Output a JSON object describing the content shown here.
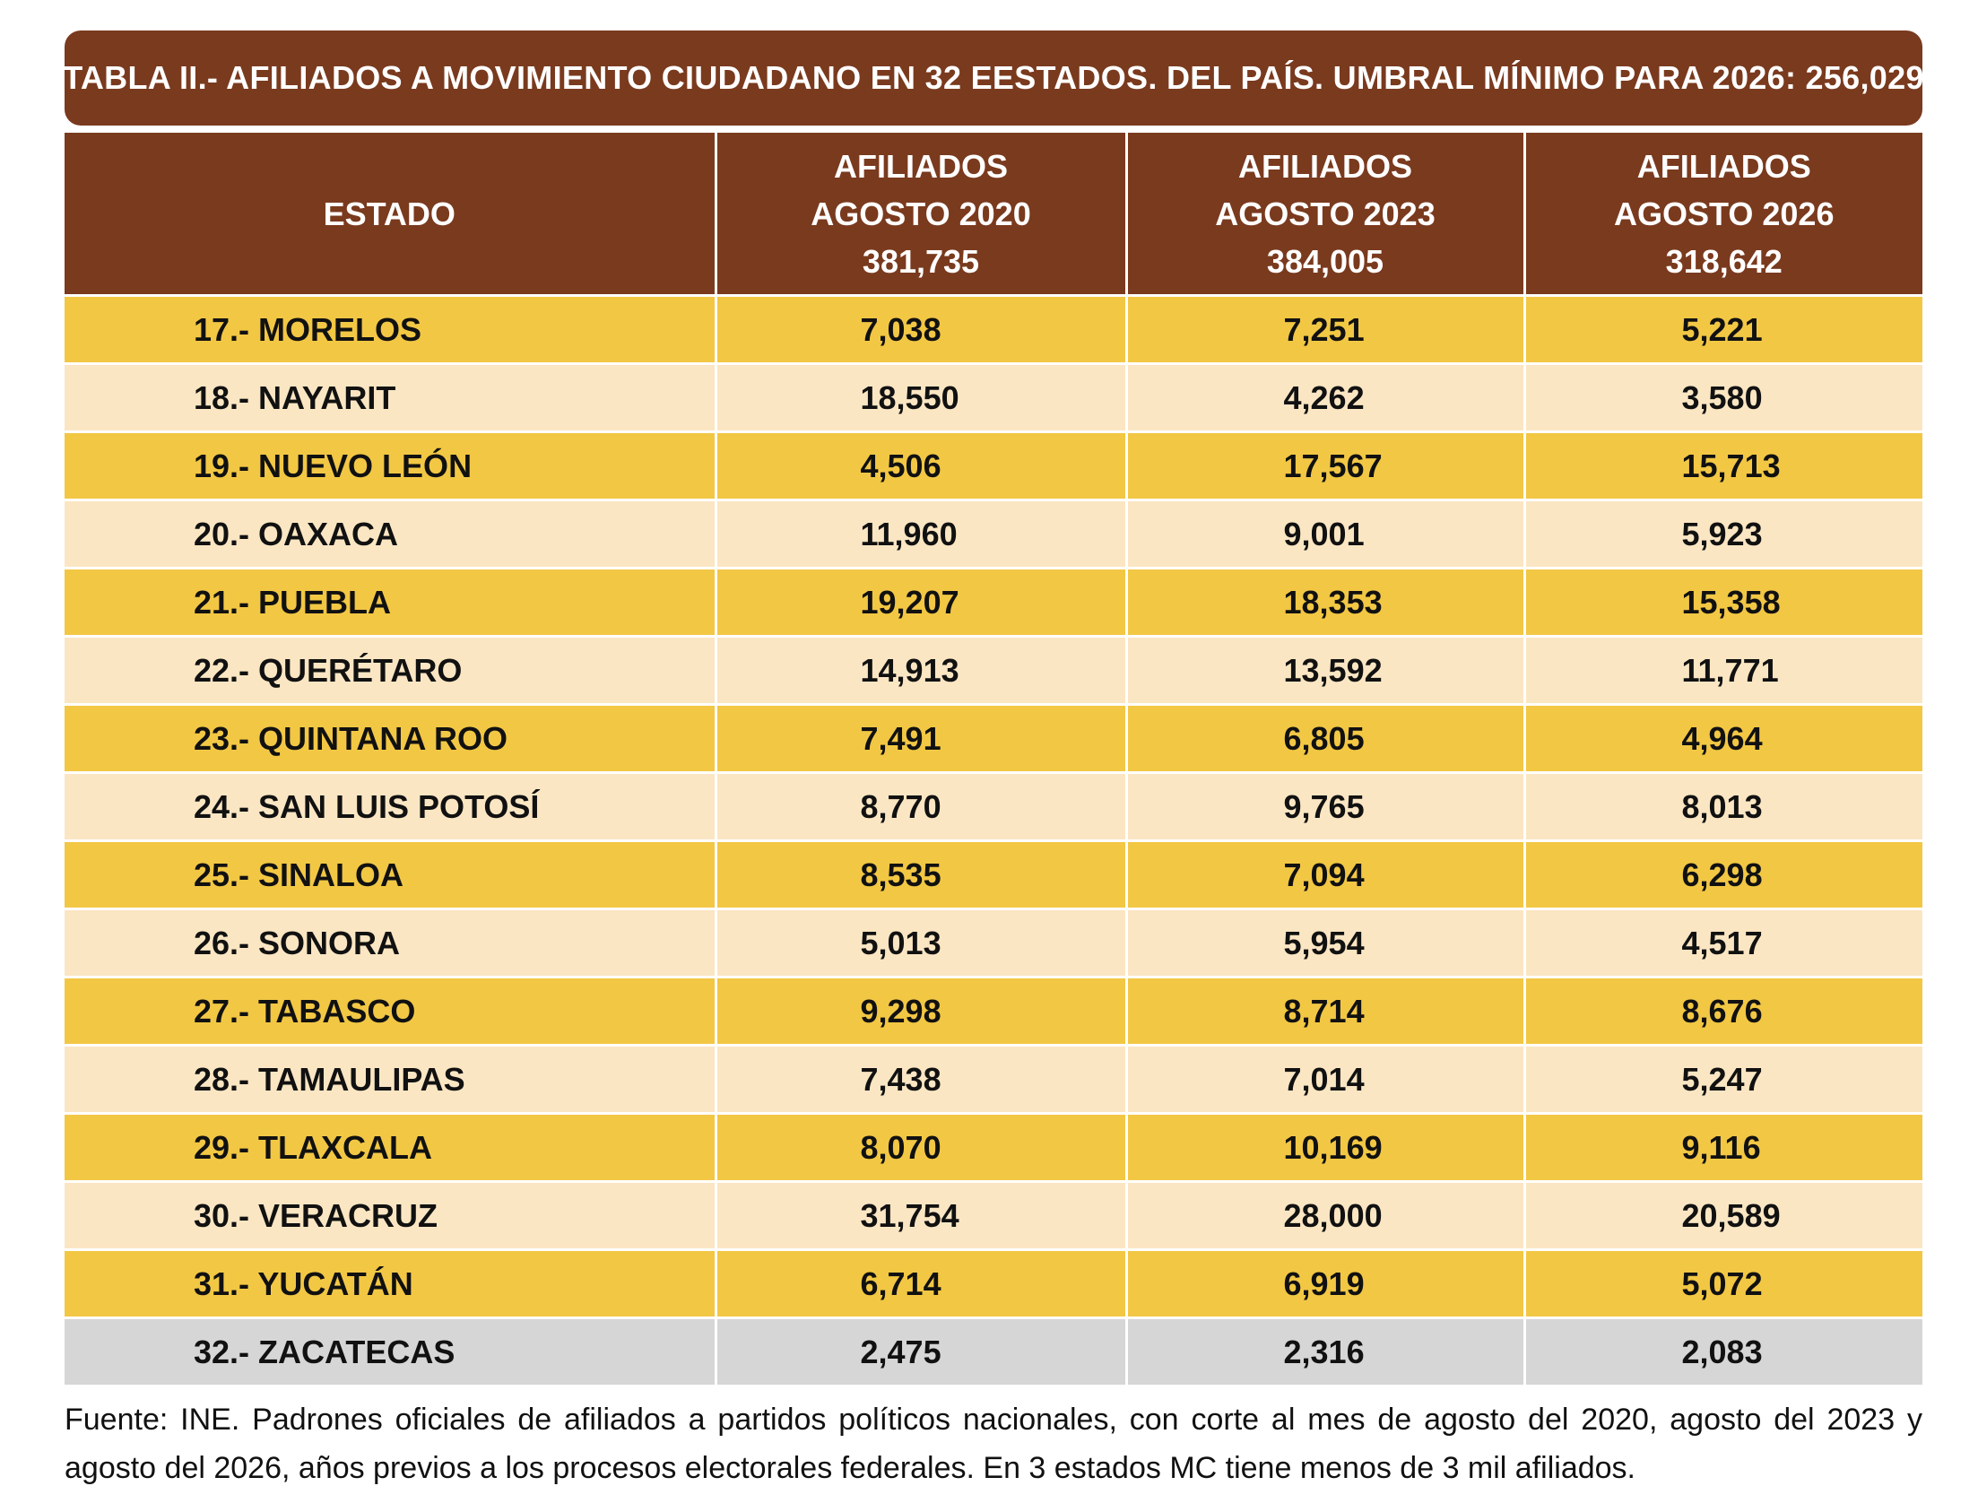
{
  "title": "TABLA II.- AFILIADOS A MOVIMIENTO CIUDADANO EN 32 EESTADOS. DEL PAÍS. UMBRAL MÍNIMO PARA 2026:   256,029",
  "headers": {
    "estado": "ESTADO",
    "col2020": {
      "line1": "AFILIADOS",
      "line2": "AGOSTO 2020",
      "total": "381,735"
    },
    "col2023": {
      "line1": "AFILIADOS",
      "line2": "AGOSTO 2023",
      "total": "384,005"
    },
    "col2026": {
      "line1": "AFILIADOS",
      "line2": "AGOSTO 2026",
      "total": "318,642"
    }
  },
  "rows": [
    {
      "estado": "17.- MORELOS",
      "a2020": "7,038",
      "a2023": "7,251",
      "a2026": "5,221",
      "color": "#f2c744"
    },
    {
      "estado": "18.- NAYARIT",
      "a2020": "18,550",
      "a2023": "4,262",
      "a2026": "3,580",
      "color": "#fbe6c3"
    },
    {
      "estado": "19.- NUEVO LEÓN",
      "a2020": "4,506",
      "a2023": "17,567",
      "a2026": "15,713",
      "color": "#f2c744"
    },
    {
      "estado": "20.- OAXACA",
      "a2020": "11,960",
      "a2023": "9,001",
      "a2026": "5,923",
      "color": "#fbe6c3"
    },
    {
      "estado": "21.- PUEBLA",
      "a2020": "19,207",
      "a2023": "18,353",
      "a2026": "15,358",
      "color": "#f2c744"
    },
    {
      "estado": "22.- QUERÉTARO",
      "a2020": "14,913",
      "a2023": "13,592",
      "a2026": "11,771",
      "color": "#fbe6c3"
    },
    {
      "estado": "23.- QUINTANA ROO",
      "a2020": "7,491",
      "a2023": "6,805",
      "a2026": "4,964",
      "color": "#f2c744"
    },
    {
      "estado": "24.- SAN LUIS POTOSÍ",
      "a2020": "8,770",
      "a2023": "9,765",
      "a2026": "8,013",
      "color": "#fbe6c3"
    },
    {
      "estado": "25.- SINALOA",
      "a2020": "8,535",
      "a2023": "7,094",
      "a2026": "6,298",
      "color": "#f2c744"
    },
    {
      "estado": "26.- SONORA",
      "a2020": "5,013",
      "a2023": "5,954",
      "a2026": "4,517",
      "color": "#fbe6c3"
    },
    {
      "estado": "27.- TABASCO",
      "a2020": "9,298",
      "a2023": "8,714",
      "a2026": "8,676",
      "color": "#f2c744"
    },
    {
      "estado": "28.- TAMAULIPAS",
      "a2020": "7,438",
      "a2023": "7,014",
      "a2026": "5,247",
      "color": "#fbe6c3"
    },
    {
      "estado": "29.- TLAXCALA",
      "a2020": "8,070",
      "a2023": "10,169",
      "a2026": "9,116",
      "color": "#f2c744"
    },
    {
      "estado": "30.- VERACRUZ",
      "a2020": "31,754",
      "a2023": "28,000",
      "a2026": "20,589",
      "color": "#fbe6c3"
    },
    {
      "estado": "31.- YUCATÁN",
      "a2020": "6,714",
      "a2023": "6,919",
      "a2026": "5,072",
      "color": "#f2c744"
    },
    {
      "estado": "32.- ZACATECAS",
      "a2020": "2,475",
      "a2023": "2,316",
      "a2026": "2,083",
      "color": "#d6d6d6"
    }
  ],
  "footnote": "Fuente: INE. Padrones oficiales de afiliados a partidos políticos nacionales, con corte al mes de agosto del 2020, agosto del 2023 y agosto del 2026, años previos a los procesos electorales federales. En 3 estados MC tiene menos de 3 mil afiliados.",
  "colors": {
    "header_brown": "#7a3a1e",
    "row_yellow": "#f2c744",
    "row_cream": "#fbe6c3",
    "row_gray": "#d6d6d6"
  }
}
